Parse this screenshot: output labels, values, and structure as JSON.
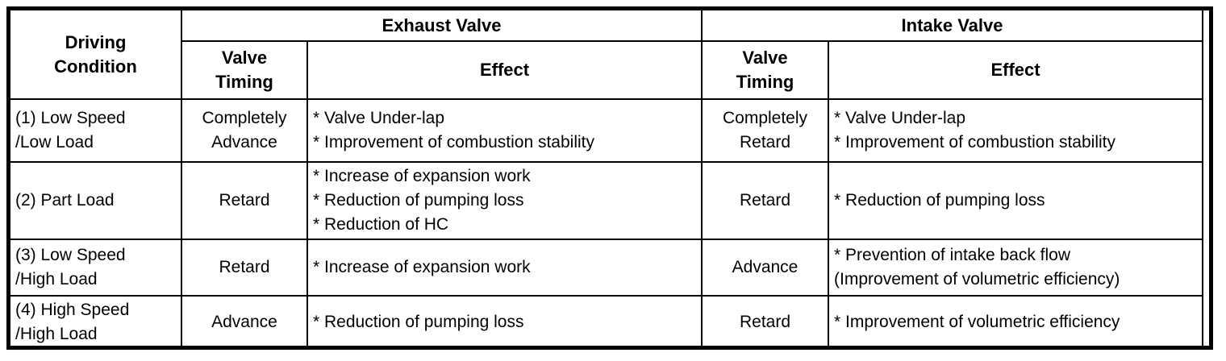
{
  "table": {
    "col1_header": "Driving\nCondition",
    "groups": [
      {
        "label": "Exhaust Valve"
      },
      {
        "label": "Intake Valve"
      }
    ],
    "subheaders": {
      "valve_timing": "Valve\nTiming",
      "effect": "Effect"
    },
    "rows": [
      {
        "condition": "(1) Low Speed\n/Low Load",
        "exhaust_timing": "Completely\nAdvance",
        "exhaust_effect": [
          "* Valve Under-lap",
          "* Improvement of combustion stability"
        ],
        "intake_timing": "Completely\nRetard",
        "intake_effect": [
          "* Valve Under-lap",
          "* Improvement of combustion stability"
        ]
      },
      {
        "condition": "(2) Part Load",
        "exhaust_timing": "Retard",
        "exhaust_effect": [
          "* Increase of expansion work",
          "* Reduction of pumping loss",
          "* Reduction of HC"
        ],
        "intake_timing": "Retard",
        "intake_effect": [
          "* Reduction of pumping loss"
        ]
      },
      {
        "condition": "(3) Low Speed\n/High Load",
        "exhaust_timing": "Retard",
        "exhaust_effect": [
          "* Increase of expansion work"
        ],
        "intake_timing": "Advance",
        "intake_effect": [
          "* Prevention of intake back flow",
          "(Improvement of volumetric efficiency)"
        ]
      },
      {
        "condition": "(4) High Speed\n/High Load",
        "exhaust_timing": "Advance",
        "exhaust_effect": [
          "* Reduction of pumping loss"
        ],
        "intake_timing": "Retard",
        "intake_effect": [
          "* Improvement of volumetric efficiency"
        ]
      }
    ],
    "colors": {
      "border": "#000000",
      "text": "#000000",
      "background": "#ffffff"
    }
  }
}
